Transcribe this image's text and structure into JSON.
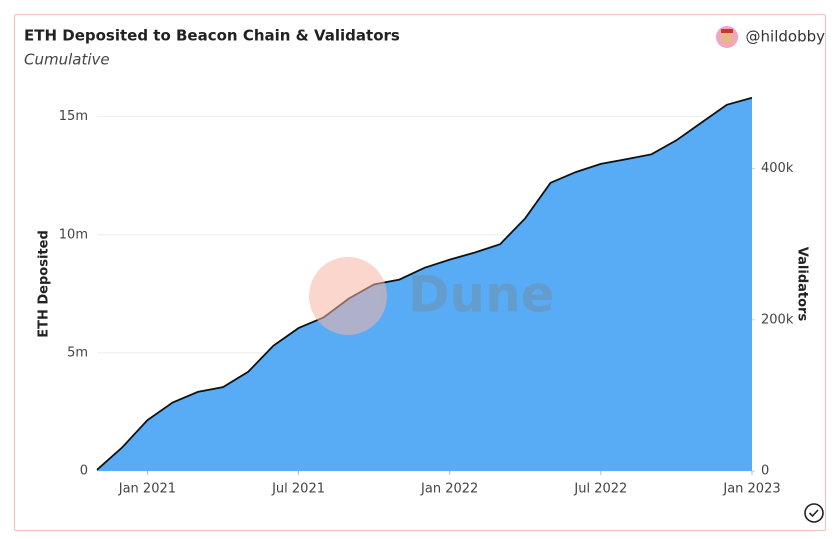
{
  "chart_data": {
    "type": "area",
    "title": "ETH Deposited to Beacon Chain & Validators",
    "subtitle": "Cumulative",
    "author": "@hildobby",
    "watermark": "Dune",
    "y_label": "ETH Deposited",
    "y2_label": "Validators",
    "x": [
      "2020-11",
      "2020-12",
      "2021-01",
      "2021-02",
      "2021-03",
      "2021-04",
      "2021-05",
      "2021-06",
      "2021-07",
      "2021-08",
      "2021-09",
      "2021-10",
      "2021-11",
      "2021-12",
      "2022-01",
      "2022-02",
      "2022-03",
      "2022-04",
      "2022-05",
      "2022-06",
      "2022-07",
      "2022-08",
      "2022-09",
      "2022-10",
      "2022-11",
      "2022-12",
      "2023-01"
    ],
    "xlim": [
      "2020-11",
      "2023-01"
    ],
    "xticks": [
      {
        "value": "2021-01",
        "label": "Jan 2021"
      },
      {
        "value": "2021-07",
        "label": "Jul 2021"
      },
      {
        "value": "2022-01",
        "label": "Jan 2022"
      },
      {
        "value": "2022-07",
        "label": "Jul 2022"
      },
      {
        "value": "2023-01",
        "label": "Jan 2023"
      }
    ],
    "series": [
      {
        "name": "ETH Deposited",
        "color": "#58acf6",
        "values": [
          50000,
          1000000,
          2150000,
          2900000,
          3350000,
          3550000,
          4200000,
          5300000,
          6050000,
          6500000,
          7300000,
          7900000,
          8100000,
          8600000,
          8950000,
          9250000,
          9600000,
          10700000,
          12200000,
          12650000,
          13000000,
          13200000,
          13400000,
          14000000,
          14750000,
          15500000,
          15800000
        ]
      },
      {
        "name": "Validators",
        "color": "#111111",
        "axis": "y2",
        "values": [
          1563,
          31250,
          67188,
          90625,
          104688,
          110938,
          131250,
          165625,
          189063,
          203125,
          228125,
          246875,
          253125,
          268750,
          279688,
          289063,
          300000,
          334375,
          381250,
          395313,
          406250,
          412500,
          418750,
          437500,
          460938,
          484375,
          493750
        ]
      }
    ],
    "ylim": [
      0,
      16000000
    ],
    "yticks": [
      {
        "value": 0,
        "label": "0"
      },
      {
        "value": 5000000,
        "label": "5m"
      },
      {
        "value": 10000000,
        "label": "10m"
      },
      {
        "value": 15000000,
        "label": "15m"
      }
    ],
    "y2lim": [
      0,
      500000
    ],
    "y2ticks": [
      0,
      {
        "value": 200000,
        "label": "200k"
      },
      {
        "value": 400000,
        "label": "400k"
      }
    ],
    "grid": true
  }
}
